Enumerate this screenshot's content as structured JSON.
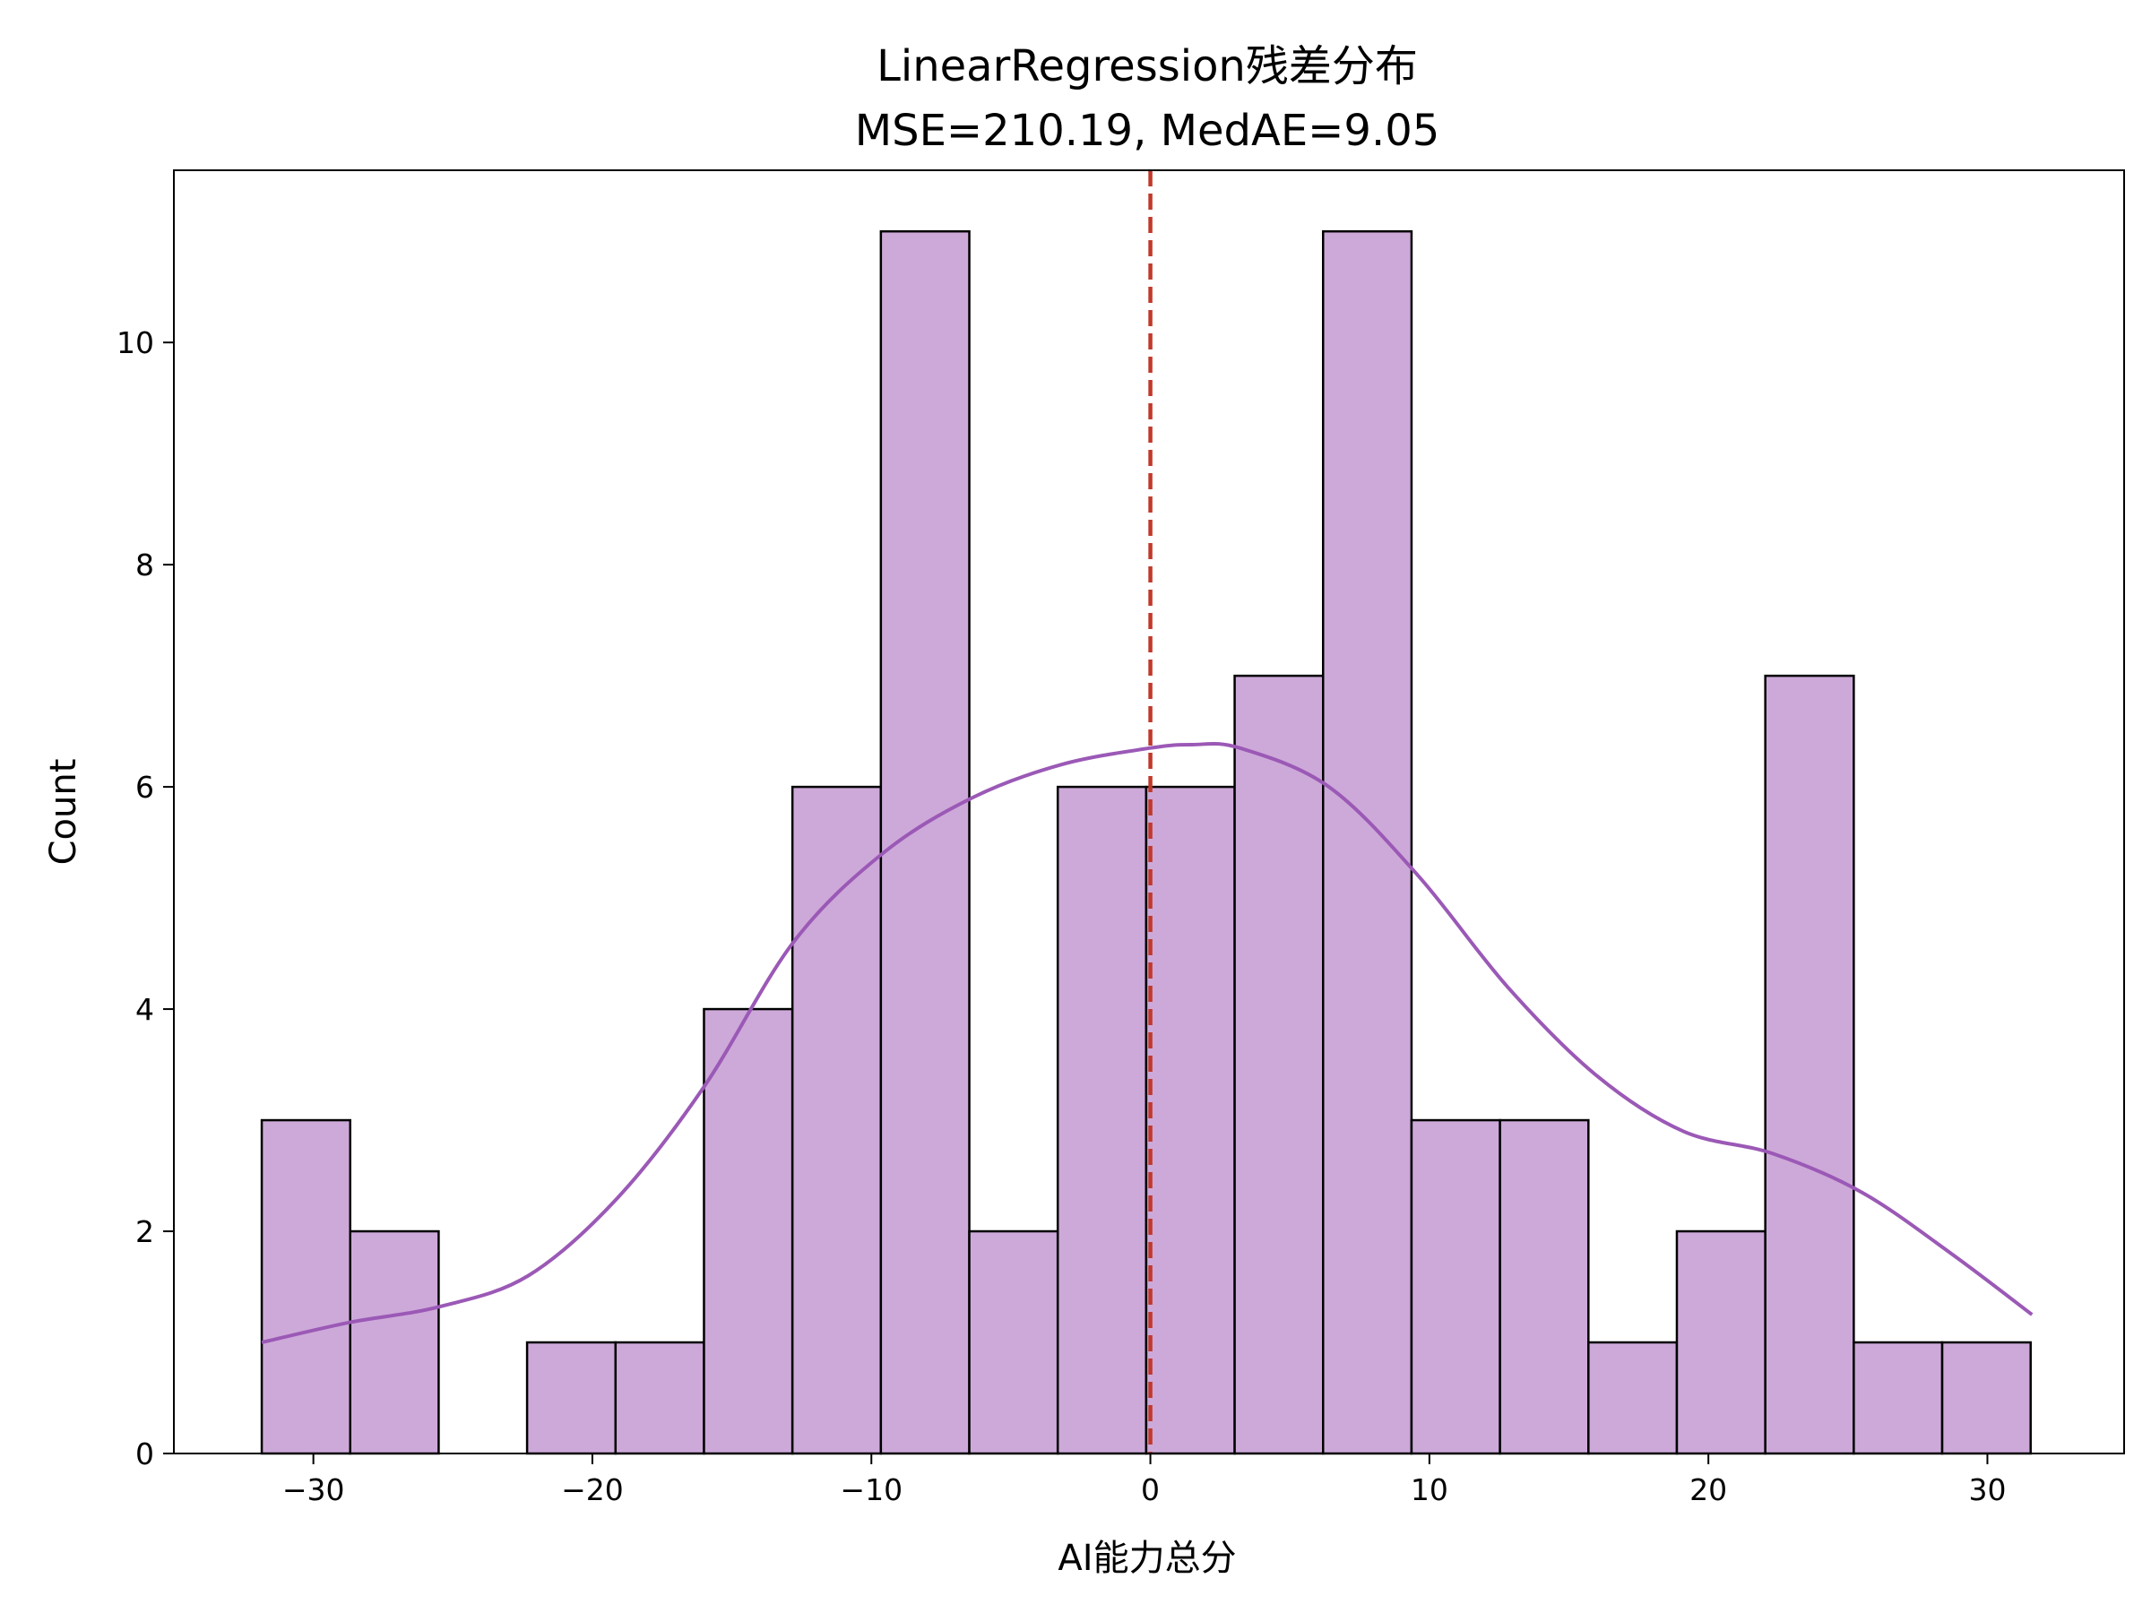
{
  "chart_data": {
    "type": "bar",
    "title": "LinearRegression残差分布",
    "subtitle": "MSE=210.19, MedAE=9.05",
    "xlabel": "AI能力总分",
    "ylabel": "Count",
    "xlim": [
      -35,
      34.9
    ],
    "ylim": [
      0,
      11.55
    ],
    "xticks": [
      -30,
      -20,
      -10,
      0,
      10,
      20,
      30
    ],
    "xtick_labels": [
      "−30",
      "−20",
      "−10",
      "0",
      "10",
      "20",
      "30"
    ],
    "yticks": [
      0,
      2,
      4,
      6,
      8,
      10
    ],
    "yticks_labels": [
      "0",
      "2",
      "4",
      "6",
      "8",
      "10"
    ],
    "bins_start": -31.85,
    "bin_width": 3.17,
    "counts": [
      3,
      2,
      0,
      1,
      1,
      4,
      6,
      11,
      2,
      6,
      6,
      7,
      11,
      3,
      3,
      1,
      2,
      7,
      1,
      1
    ],
    "kde": {
      "x": [
        -31.85,
        -28.7,
        -25.5,
        -22.3,
        -19.1,
        -16.0,
        -12.8,
        -9.6,
        -6.4,
        -3.2,
        0,
        1.5,
        3.2,
        6.4,
        9.6,
        12.8,
        16.0,
        19.1,
        22.3,
        25.5,
        28.7,
        31.6
      ],
      "y": [
        1.0,
        1.18,
        1.32,
        1.6,
        2.3,
        3.3,
        4.6,
        5.4,
        5.9,
        6.2,
        6.35,
        6.38,
        6.35,
        6.0,
        5.2,
        4.2,
        3.4,
        2.9,
        2.7,
        2.35,
        1.8,
        1.25
      ]
    },
    "reference_line": {
      "x": 0,
      "style": "dashed"
    },
    "grid": false,
    "colors": {
      "bar_fill": "#CDA9D9",
      "bar_edge": "#000000",
      "kde_line": "#9B59B6",
      "reference_line": "#C0392B"
    }
  }
}
